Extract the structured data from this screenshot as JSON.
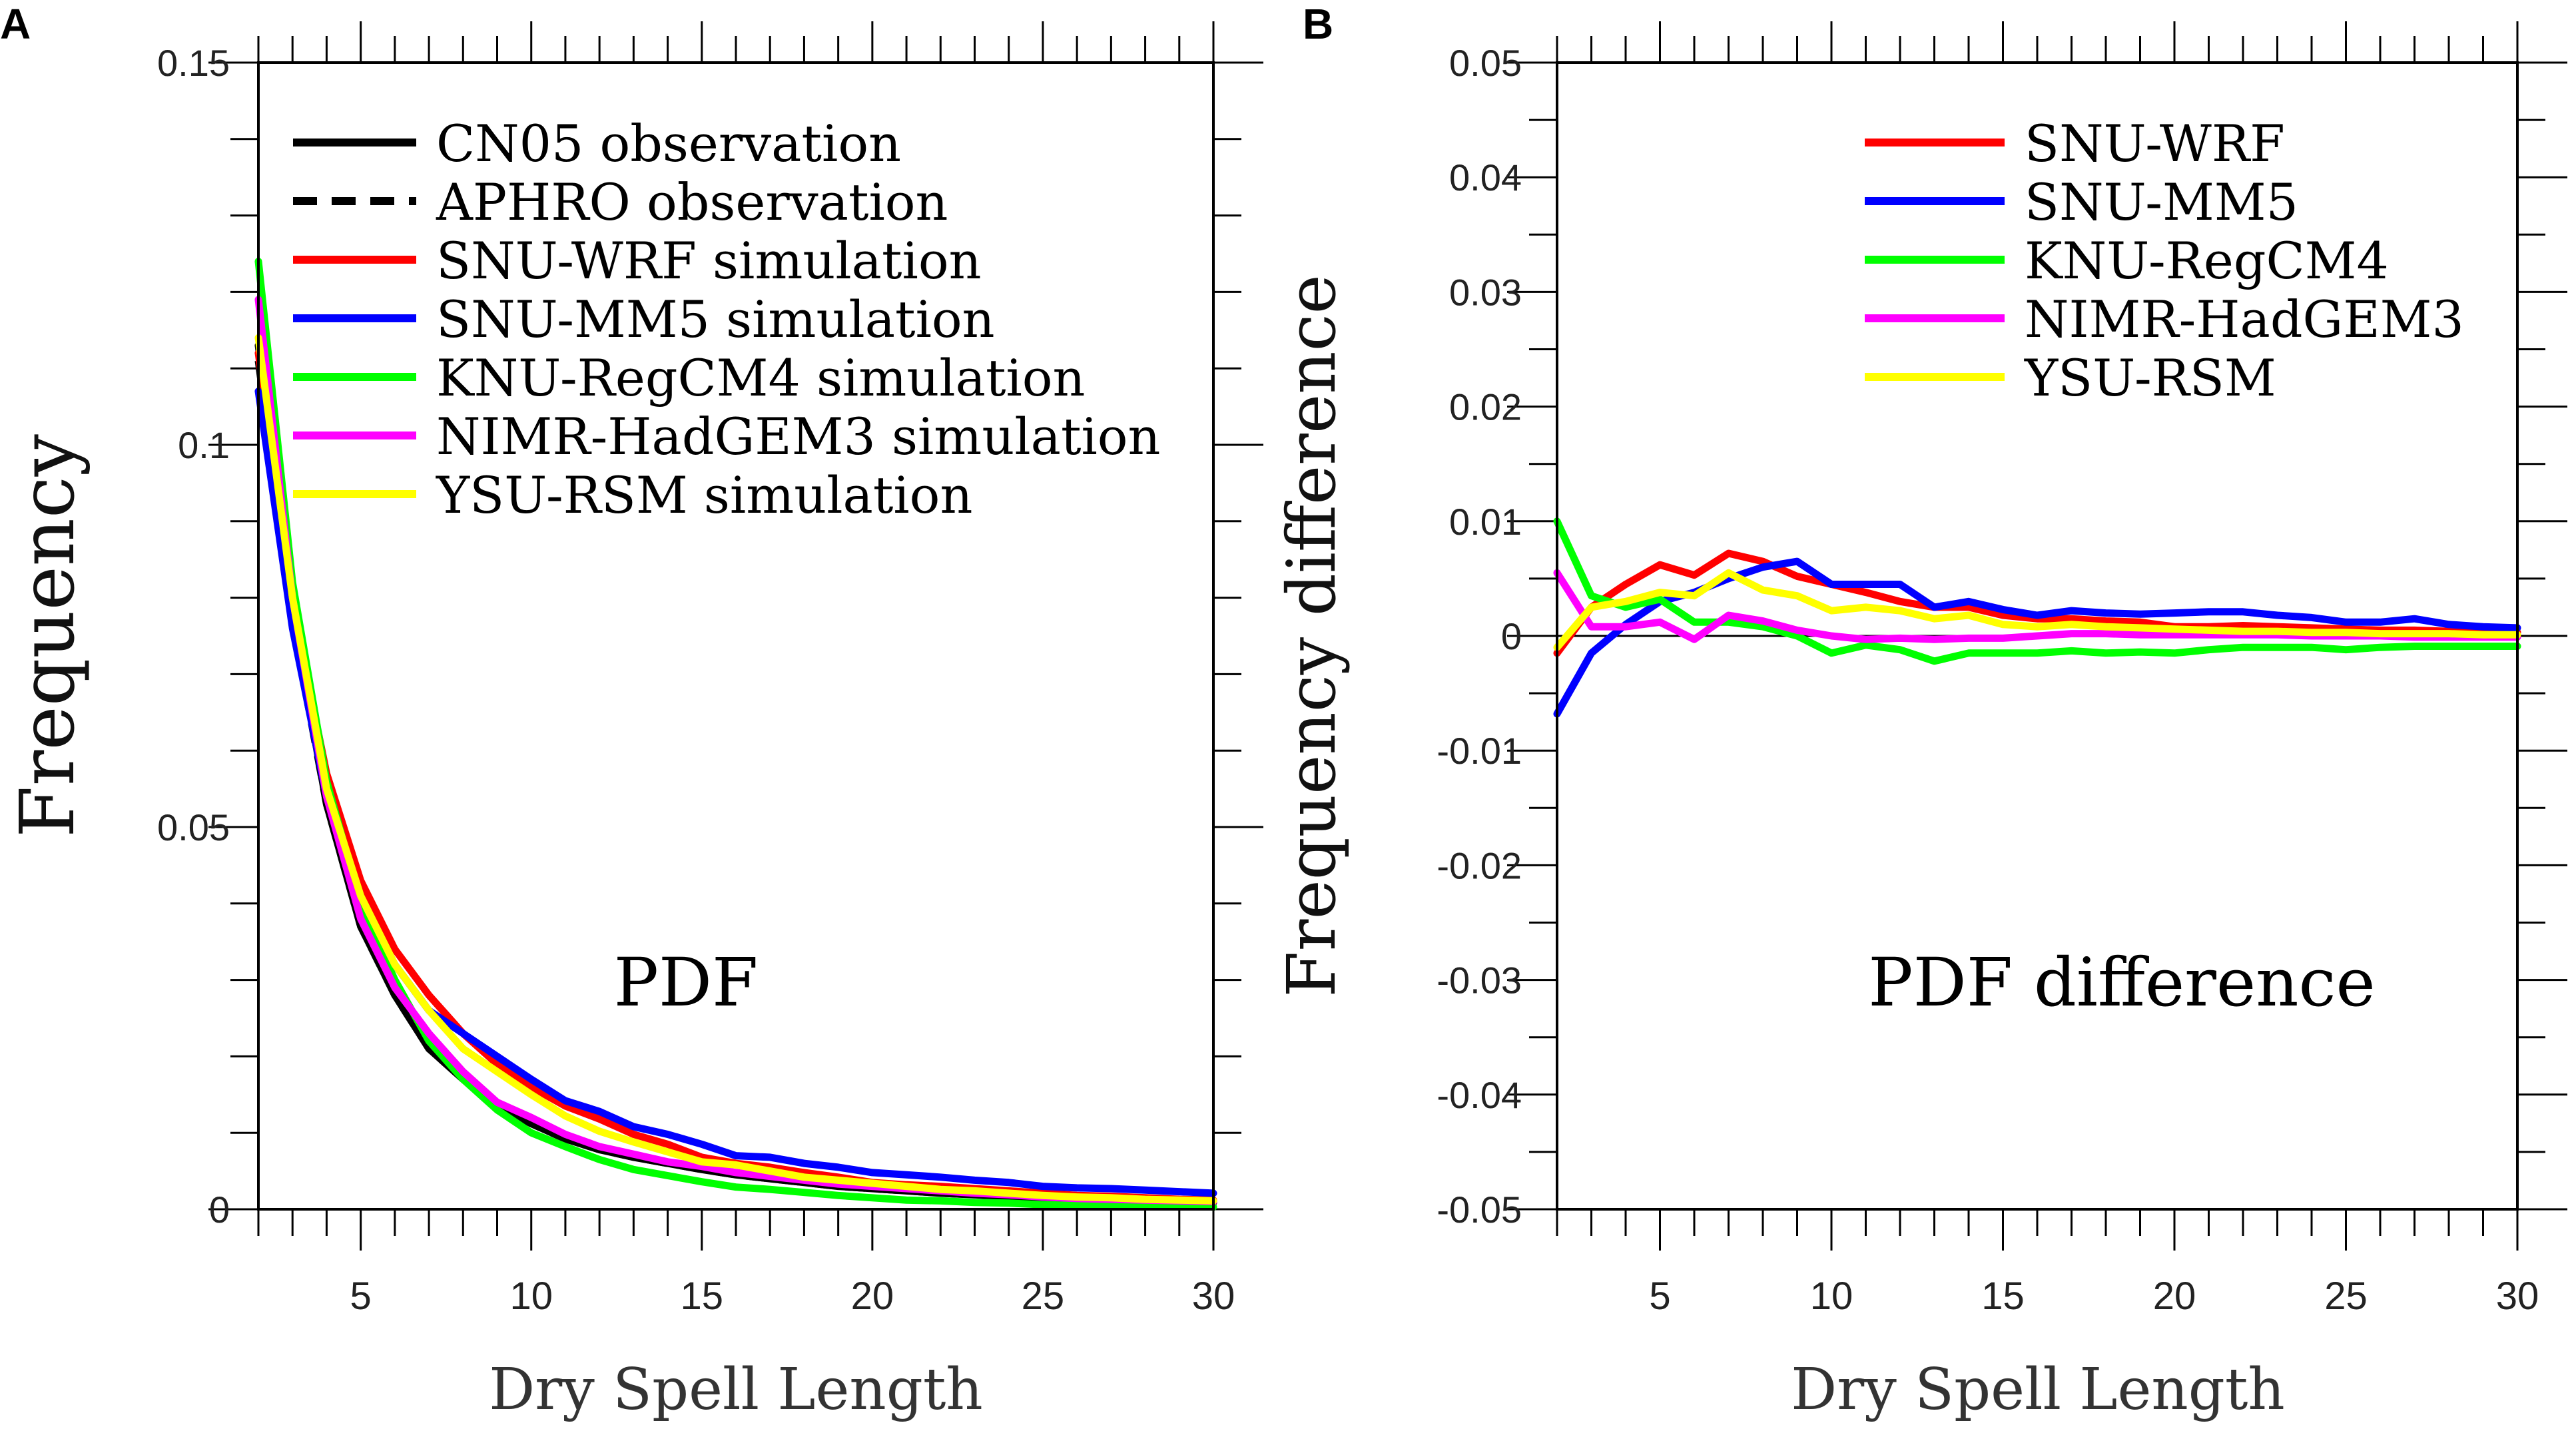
{
  "chart_data": [
    {
      "type": "line",
      "panel_label": "A",
      "title": "",
      "annotation": "PDF",
      "xlabel": "Dry Spell Length",
      "ylabel": "Frequency",
      "xlim": [
        2,
        30
      ],
      "ylim": [
        0,
        0.15
      ],
      "x_ticks": [
        5,
        10,
        15,
        20,
        25,
        30
      ],
      "x_tick_labels": [
        "5",
        "10",
        "15",
        "20",
        "25",
        "30"
      ],
      "y_ticks": [
        0,
        0.05,
        0.1,
        0.15
      ],
      "y_tick_labels": [
        "0",
        "0.05",
        "0.1",
        "0.15"
      ],
      "grid": false,
      "legend_position": "top-left",
      "x": [
        2,
        3,
        4,
        5,
        6,
        7,
        8,
        9,
        10,
        11,
        12,
        13,
        14,
        15,
        16,
        17,
        18,
        19,
        20,
        21,
        22,
        23,
        24,
        25,
        26,
        27,
        28,
        29,
        30
      ],
      "series": [
        {
          "name": "CN05 observation",
          "color": "#000000",
          "dash": "solid",
          "values": [
            0.113,
            0.078,
            0.053,
            0.037,
            0.028,
            0.021,
            0.017,
            0.0135,
            0.0112,
            0.0092,
            0.0078,
            0.0068,
            0.006,
            0.0052,
            0.0045,
            0.004,
            0.0035,
            0.003,
            0.0027,
            0.0024,
            0.0021,
            0.0019,
            0.0017,
            0.0015,
            0.0013,
            0.0012,
            0.0011,
            0.001,
            0.0009
          ]
        },
        {
          "name": "APHRO observation",
          "color": "#000000",
          "dash": "dashed",
          "values": [
            0.111,
            0.077,
            0.053,
            0.037,
            0.028,
            0.021,
            0.017,
            0.0135,
            0.0112,
            0.0092,
            0.0078,
            0.0068,
            0.006,
            0.0052,
            0.0045,
            0.004,
            0.0035,
            0.003,
            0.0027,
            0.0024,
            0.0021,
            0.0019,
            0.0017,
            0.0015,
            0.0013,
            0.0012,
            0.0011,
            0.001,
            0.0009
          ]
        },
        {
          "name": "SNU-WRF simulation",
          "color": "#ff0000",
          "dash": "solid",
          "values": [
            0.112,
            0.079,
            0.057,
            0.043,
            0.034,
            0.028,
            0.023,
            0.019,
            0.016,
            0.0135,
            0.0118,
            0.0098,
            0.0085,
            0.0068,
            0.006,
            0.0055,
            0.0048,
            0.0042,
            0.0035,
            0.0032,
            0.003,
            0.0027,
            0.0024,
            0.0021,
            0.0018,
            0.0017,
            0.0015,
            0.0013,
            0.0012
          ]
        },
        {
          "name": "SNU-MM5 simulation",
          "color": "#0000ff",
          "dash": "solid",
          "values": [
            0.107,
            0.076,
            0.054,
            0.04,
            0.032,
            0.026,
            0.023,
            0.02,
            0.017,
            0.0142,
            0.0128,
            0.0108,
            0.0098,
            0.0085,
            0.007,
            0.0068,
            0.006,
            0.0055,
            0.0048,
            0.0045,
            0.0042,
            0.0038,
            0.0035,
            0.003,
            0.0028,
            0.0027,
            0.0025,
            0.0023,
            0.0021
          ]
        },
        {
          "name": "KNU-RegCM4 simulation",
          "color": "#00ff00",
          "dash": "solid",
          "values": [
            0.124,
            0.082,
            0.056,
            0.04,
            0.03,
            0.022,
            0.017,
            0.013,
            0.01,
            0.0082,
            0.0065,
            0.0052,
            0.0044,
            0.0036,
            0.0029,
            0.0026,
            0.0022,
            0.0018,
            0.0015,
            0.0012,
            0.0011,
            0.0009,
            0.0008,
            0.0006,
            0.0005,
            0.0005,
            0.0004,
            0.0004,
            0.0003
          ]
        },
        {
          "name": "NIMR-HadGEM3 simulation",
          "color": "#ff00ff",
          "dash": "solid",
          "values": [
            0.119,
            0.08,
            0.054,
            0.038,
            0.029,
            0.023,
            0.018,
            0.014,
            0.012,
            0.0098,
            0.0082,
            0.0072,
            0.0062,
            0.0056,
            0.0048,
            0.0043,
            0.0038,
            0.0033,
            0.003,
            0.0027,
            0.0024,
            0.0021,
            0.0019,
            0.0016,
            0.0014,
            0.0013,
            0.0012,
            0.0011,
            0.001
          ]
        },
        {
          "name": "YSU-RSM simulation",
          "color": "#ffff00",
          "dash": "solid",
          "values": [
            0.114,
            0.08,
            0.055,
            0.041,
            0.032,
            0.026,
            0.021,
            0.018,
            0.015,
            0.0122,
            0.0102,
            0.0088,
            0.0075,
            0.0062,
            0.0058,
            0.005,
            0.0042,
            0.0038,
            0.0034,
            0.003,
            0.0026,
            0.0024,
            0.0021,
            0.0018,
            0.0016,
            0.0015,
            0.0013,
            0.0012,
            0.0011
          ]
        }
      ]
    },
    {
      "type": "line",
      "panel_label": "B",
      "title": "",
      "annotation": "PDF difference",
      "xlabel": "Dry Spell Length",
      "ylabel": "Frequency difference",
      "xlim": [
        2,
        30
      ],
      "ylim": [
        -0.05,
        0.05
      ],
      "x_ticks": [
        5,
        10,
        15,
        20,
        25,
        30
      ],
      "x_tick_labels": [
        "5",
        "10",
        "15",
        "20",
        "25",
        "30"
      ],
      "y_ticks": [
        -0.05,
        -0.04,
        -0.03,
        -0.02,
        -0.01,
        0,
        0.01,
        0.02,
        0.03,
        0.04,
        0.05
      ],
      "y_tick_labels": [
        "-0.05",
        "-0.04",
        "-0.03",
        "-0.02",
        "-0.01",
        "0",
        "0.01",
        "0.02",
        "0.03",
        "0.04",
        "0.05"
      ],
      "grid": false,
      "legend_position": "top-center",
      "x": [
        2,
        3,
        4,
        5,
        6,
        7,
        8,
        9,
        10,
        11,
        12,
        13,
        14,
        15,
        16,
        17,
        18,
        19,
        20,
        21,
        22,
        23,
        24,
        25,
        26,
        27,
        28,
        29,
        30
      ],
      "series": [
        {
          "name": "SNU-WRF",
          "color": "#ff0000",
          "dash": "solid",
          "values": [
            -0.0015,
            0.0025,
            0.0045,
            0.0062,
            0.0053,
            0.0072,
            0.0065,
            0.0052,
            0.0045,
            0.0038,
            0.003,
            0.0025,
            0.0025,
            0.0018,
            0.0015,
            0.0015,
            0.0013,
            0.0012,
            0.0008,
            0.0008,
            0.0009,
            0.0008,
            0.0007,
            0.0006,
            0.0005,
            0.0005,
            0.0004,
            0.0003,
            0.0003
          ]
        },
        {
          "name": "SNU-MM5",
          "color": "#0000ff",
          "dash": "solid",
          "values": [
            -0.0068,
            -0.0015,
            0.001,
            0.003,
            0.0038,
            0.005,
            0.006,
            0.0065,
            0.0045,
            0.0045,
            0.0045,
            0.0025,
            0.003,
            0.0023,
            0.0018,
            0.0022,
            0.002,
            0.0019,
            0.002,
            0.0021,
            0.0021,
            0.0018,
            0.0016,
            0.0012,
            0.0012,
            0.0015,
            0.001,
            0.0008,
            0.0007
          ]
        },
        {
          "name": "KNU-RegCM4",
          "color": "#00ff00",
          "dash": "solid",
          "values": [
            0.01,
            0.0035,
            0.0025,
            0.0032,
            0.0012,
            0.0012,
            0.0008,
            0.0,
            -0.0015,
            -0.0008,
            -0.0012,
            -0.0022,
            -0.0015,
            -0.0015,
            -0.0015,
            -0.0013,
            -0.0015,
            -0.0014,
            -0.0015,
            -0.0012,
            -0.001,
            -0.001,
            -0.001,
            -0.0012,
            -0.001,
            -0.0009,
            -0.0009,
            -0.0009,
            -0.0009
          ]
        },
        {
          "name": "NIMR-HadGEM3",
          "color": "#ff00ff",
          "dash": "solid",
          "values": [
            0.0055,
            0.0008,
            0.0008,
            0.0012,
            -0.0003,
            0.0018,
            0.0013,
            0.0005,
            0.0,
            -0.0003,
            -0.0002,
            -0.0003,
            -0.0002,
            -0.0002,
            0.0,
            0.0002,
            0.0002,
            0.0001,
            0.0001,
            0.0001,
            0.0001,
            0.0001,
            0.0,
            0.0,
            0.0,
            -0.0001,
            -0.0001,
            -0.0001,
            -0.0001
          ]
        },
        {
          "name": "YSU-RSM",
          "color": "#ffff00",
          "dash": "solid",
          "values": [
            -0.001,
            0.0025,
            0.003,
            0.0038,
            0.0035,
            0.0055,
            0.004,
            0.0035,
            0.0022,
            0.0025,
            0.0022,
            0.0015,
            0.0018,
            0.001,
            0.0008,
            0.001,
            0.0008,
            0.0007,
            0.0006,
            0.0005,
            0.0004,
            0.0004,
            0.0003,
            0.0003,
            0.0002,
            0.0002,
            0.0002,
            0.0001,
            0.0001
          ]
        }
      ]
    }
  ]
}
